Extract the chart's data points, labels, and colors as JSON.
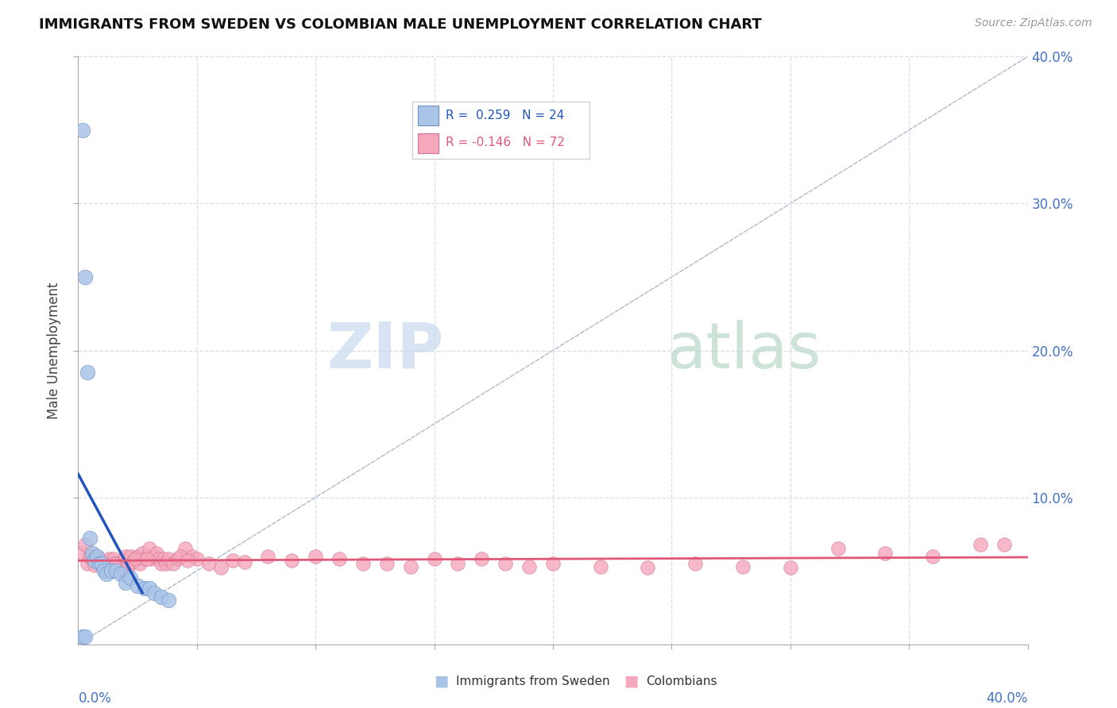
{
  "title": "IMMIGRANTS FROM SWEDEN VS COLOMBIAN MALE UNEMPLOYMENT CORRELATION CHART",
  "source": "Source: ZipAtlas.com",
  "ylabel": "Male Unemployment",
  "legend_entries": [
    {
      "label": "Immigrants from Sweden",
      "R": "0.259",
      "N": "24",
      "color": "#aac4e8"
    },
    {
      "label": "Colombians",
      "R": "-0.146",
      "N": "72",
      "color": "#f5a8bc"
    }
  ],
  "sweden_scatter_x": [
    0.002,
    0.003,
    0.004,
    0.005,
    0.006,
    0.007,
    0.008,
    0.009,
    0.01,
    0.011,
    0.012,
    0.014,
    0.016,
    0.018,
    0.02,
    0.022,
    0.025,
    0.028,
    0.03,
    0.032,
    0.035,
    0.038,
    0.002,
    0.003
  ],
  "sweden_scatter_y": [
    0.35,
    0.25,
    0.185,
    0.072,
    0.062,
    0.057,
    0.06,
    0.055,
    0.055,
    0.05,
    0.048,
    0.05,
    0.05,
    0.048,
    0.042,
    0.045,
    0.04,
    0.038,
    0.038,
    0.035,
    0.032,
    0.03,
    0.005,
    0.005
  ],
  "colombia_scatter_x": [
    0.002,
    0.003,
    0.004,
    0.005,
    0.006,
    0.007,
    0.008,
    0.009,
    0.01,
    0.011,
    0.012,
    0.013,
    0.014,
    0.015,
    0.016,
    0.017,
    0.018,
    0.019,
    0.02,
    0.021,
    0.022,
    0.023,
    0.025,
    0.026,
    0.027,
    0.028,
    0.03,
    0.031,
    0.032,
    0.033,
    0.034,
    0.035,
    0.036,
    0.037,
    0.038,
    0.04,
    0.042,
    0.045,
    0.048,
    0.05,
    0.055,
    0.06,
    0.065,
    0.07,
    0.08,
    0.09,
    0.1,
    0.11,
    0.12,
    0.13,
    0.14,
    0.15,
    0.16,
    0.17,
    0.18,
    0.19,
    0.2,
    0.22,
    0.24,
    0.26,
    0.28,
    0.3,
    0.32,
    0.34,
    0.36,
    0.38,
    0.39,
    0.015,
    0.024,
    0.029,
    0.043,
    0.046
  ],
  "colombia_scatter_y": [
    0.062,
    0.068,
    0.055,
    0.06,
    0.058,
    0.054,
    0.06,
    0.055,
    0.057,
    0.053,
    0.056,
    0.058,
    0.054,
    0.058,
    0.055,
    0.053,
    0.052,
    0.051,
    0.06,
    0.052,
    0.06,
    0.056,
    0.06,
    0.055,
    0.062,
    0.058,
    0.065,
    0.058,
    0.06,
    0.062,
    0.058,
    0.055,
    0.058,
    0.055,
    0.058,
    0.055,
    0.058,
    0.065,
    0.06,
    0.058,
    0.055,
    0.052,
    0.057,
    0.056,
    0.06,
    0.057,
    0.06,
    0.058,
    0.055,
    0.055,
    0.053,
    0.058,
    0.055,
    0.058,
    0.055,
    0.053,
    0.055,
    0.053,
    0.052,
    0.055,
    0.053,
    0.052,
    0.065,
    0.062,
    0.06,
    0.068,
    0.068,
    0.055,
    0.058,
    0.058,
    0.06,
    0.057
  ],
  "sweden_line_color": "#2255bb",
  "colombia_line_color": "#e05878",
  "diagonal_color": "#b0b8c8",
  "watermark_zip_color": "#c8d8ee",
  "watermark_atlas_color": "#b8d8c8",
  "background_color": "#ffffff",
  "xmin": 0.0,
  "xmax": 0.4,
  "ymin": 0.0,
  "ymax": 0.4,
  "right_ytick_color": "#4472c4",
  "grid_color": "#d8dfe8"
}
